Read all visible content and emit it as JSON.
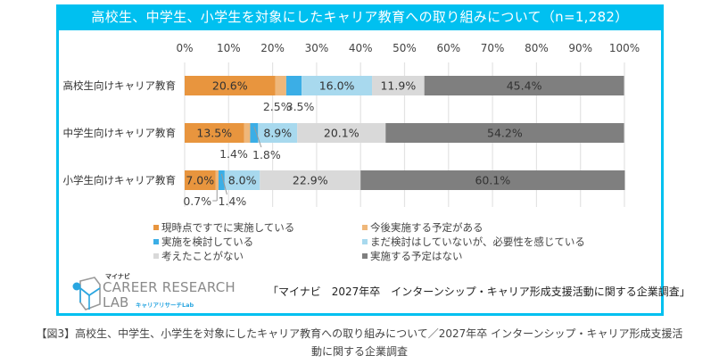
{
  "colors": {
    "frame": "#00C0F0",
    "series": [
      "#E8953E",
      "#EFB77A",
      "#3BAEE6",
      "#A8D9EE",
      "#D9D9D9",
      "#7F7F7F"
    ],
    "grid": "#E3E3E3"
  },
  "chart_data": {
    "type": "bar",
    "orientation": "horizontal",
    "stacked": true,
    "percent": true,
    "title": "高校生、中学生、小学生を対象にしたキャリア教育への取り組みについて（n=1,282）",
    "categories": [
      "高校生向けキャリア教育",
      "中学生向けキャリア教育",
      "小学生向けキャリア教育"
    ],
    "xlim": [
      0,
      100
    ],
    "xticks": [
      "0%",
      "10%",
      "20%",
      "30%",
      "40%",
      "50%",
      "60%",
      "70%",
      "80%",
      "90%",
      "100%"
    ],
    "grid": true,
    "series": [
      {
        "name": "現時点ですでに実施している",
        "values": [
          20.6,
          13.5,
          7.0
        ]
      },
      {
        "name": "今後実施する予定がある",
        "values": [
          2.5,
          1.4,
          0.7
        ]
      },
      {
        "name": "実施を検討している",
        "values": [
          3.5,
          1.8,
          1.4
        ]
      },
      {
        "name": "まだ検討はしていないが、必要性を感じている",
        "values": [
          16.0,
          8.9,
          8.0
        ]
      },
      {
        "name": "考えたことがない",
        "values": [
          11.9,
          20.1,
          22.9
        ]
      },
      {
        "name": "実施する予定はない",
        "values": [
          45.4,
          54.2,
          60.1
        ]
      }
    ],
    "labels": [
      [
        "20.6%",
        "2.5%",
        "3.5%",
        "16.0%",
        "11.9%",
        "45.4%"
      ],
      [
        "13.5%",
        "1.4%",
        "1.8%",
        "8.9%",
        "20.1%",
        "54.2%"
      ],
      [
        "7.0%",
        "0.7%",
        "1.4%",
        "8.0%",
        "22.9%",
        "60.1%"
      ]
    ],
    "legend_position": "bottom"
  },
  "logo": {
    "brand": "マイナビ",
    "line1": "CAREER RESEARCH",
    "line2": "LAB",
    "sub": "キャリアリサーチLab"
  },
  "source": "「マイナビ　2027年卒　インターンシップ・キャリア形成支援活動に関する企業調査」",
  "caption": "【図3】高校生、中学生、小学生を対象にしたキャリア教育への取り組みについて／2027年卒 インターンシップ・キャリア形成支援活動に関する企業調査"
}
